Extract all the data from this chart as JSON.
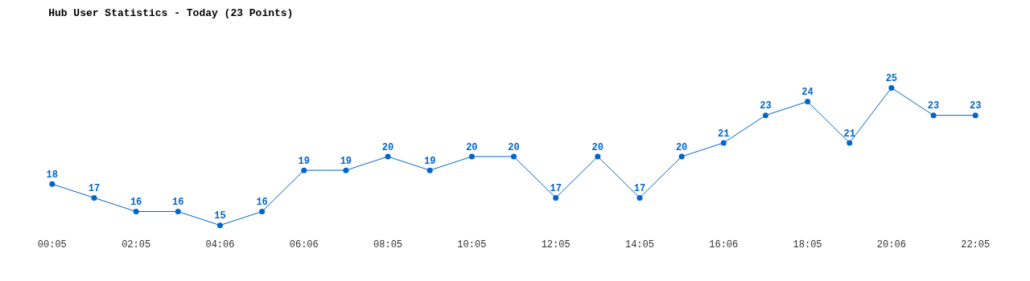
{
  "chart_data": {
    "type": "line",
    "title": "Hub User Statistics - Today (23 Points)",
    "categories": [
      "00:05",
      null,
      "02:05",
      null,
      "04:06",
      null,
      "06:06",
      null,
      "08:05",
      null,
      "10:05",
      null,
      "12:05",
      null,
      "14:05",
      null,
      "16:06",
      null,
      "18:05",
      null,
      "20:06",
      null,
      "22:05"
    ],
    "series": [
      {
        "color": "#0066cc",
        "values": [
          18,
          17,
          16,
          16,
          15,
          16,
          19,
          19,
          20,
          19,
          20,
          20,
          17,
          20,
          17,
          20,
          21,
          23,
          24,
          21,
          25,
          23,
          23
        ]
      }
    ],
    "data_labels": true,
    "marker": "circle",
    "line_style": "solid",
    "tick_labels": "x"
  }
}
